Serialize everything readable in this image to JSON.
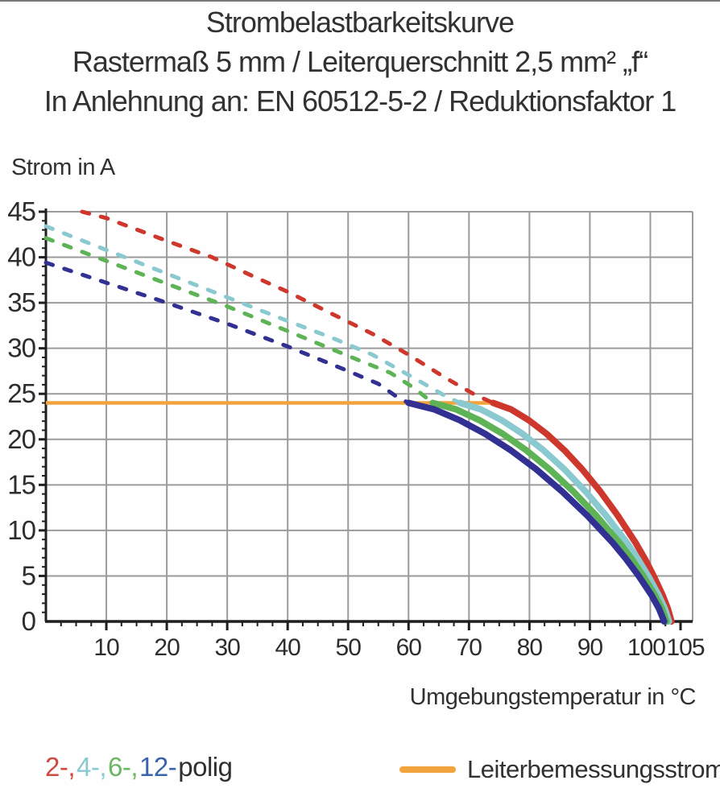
{
  "page": {
    "title_lines": [
      "Strombelastbarkeitskurve",
      "Rastermaß 5 mm / Leiterquerschnitt 2,5 mm² „f“",
      "In Anlehnung an: EN 60512-5-2 / Reduktionsfaktor 1"
    ]
  },
  "chart_data": {
    "type": "line",
    "title": "Strombelastbarkeitskurve",
    "subtitle": "Rastermaß 5 mm / Leiterquerschnitt 2,5 mm² „f“ / In Anlehnung an: EN 60512-5-2 / Reduktionsfaktor 1",
    "grid": true,
    "colors": {
      "grid": "#9b9b9b",
      "axis": "#1f1f1f",
      "text": "#2d2d2d"
    },
    "y_axis": {
      "label": "Strom in A",
      "min": 0,
      "max": 45,
      "tick_labels": [
        0,
        5,
        10,
        15,
        20,
        25,
        30,
        35,
        40,
        45
      ],
      "minor_step": 1
    },
    "x_axis": {
      "label": "Umgebungstemperatur in °C",
      "min": 0,
      "max": 107,
      "tick_labels": [
        10,
        20,
        30,
        40,
        50,
        60,
        70,
        80,
        90,
        100,
        105
      ],
      "minor_step": 2.5,
      "grid_step": 10,
      "grid_max": 100
    },
    "reference_line": {
      "name": "Leiterbemessungsstrom",
      "value": 24,
      "x_start": 0,
      "x_end": 74,
      "color": "#F2A43C"
    },
    "series": [
      {
        "name": "2-polig",
        "color": "#CE372C",
        "dashed_points": [
          [
            6,
            45
          ],
          [
            10,
            44.3
          ],
          [
            20,
            41.8
          ],
          [
            27.5,
            40
          ],
          [
            34,
            38
          ],
          [
            40,
            36.2
          ],
          [
            47,
            33.9
          ],
          [
            54,
            31.6
          ],
          [
            60,
            29.3
          ],
          [
            66,
            26.8
          ],
          [
            71,
            24.9
          ],
          [
            74,
            24
          ]
        ],
        "solid_points": [
          [
            74,
            24
          ],
          [
            76.95,
            23.3
          ],
          [
            79.9,
            22.1
          ],
          [
            82.85,
            20.6
          ],
          [
            85.8,
            18.8
          ],
          [
            88.75,
            16.7
          ],
          [
            91.7,
            14.3
          ],
          [
            94.65,
            11.6
          ],
          [
            97.6,
            8.6
          ],
          [
            99.08,
            6.9
          ],
          [
            100.55,
            5.0
          ],
          [
            102.03,
            2.9
          ],
          [
            102.91,
            1.4
          ],
          [
            103.5,
            0
          ]
        ]
      },
      {
        "name": "4-polig",
        "color": "#8AC9D0",
        "dashed_points": [
          [
            0,
            43.4
          ],
          [
            10,
            40.8
          ],
          [
            20,
            38.2
          ],
          [
            30,
            35.6
          ],
          [
            40,
            33.0
          ],
          [
            47.5,
            31.1
          ],
          [
            54,
            29.3
          ],
          [
            61,
            26.7
          ],
          [
            66,
            24.8
          ],
          [
            68.5,
            24
          ]
        ],
        "solid_points": [
          [
            68.5,
            24
          ],
          [
            71.96,
            23.3
          ],
          [
            75.42,
            22.1
          ],
          [
            78.88,
            20.6
          ],
          [
            82.34,
            18.8
          ],
          [
            85.8,
            16.7
          ],
          [
            89.26,
            14.3
          ],
          [
            92.72,
            11.6
          ],
          [
            96.18,
            8.6
          ],
          [
            97.91,
            6.9
          ],
          [
            99.64,
            5.0
          ],
          [
            101.37,
            2.9
          ],
          [
            102.41,
            1.4
          ],
          [
            103.1,
            0
          ]
        ]
      },
      {
        "name": "6-polig",
        "color": "#5DB355",
        "dashed_points": [
          [
            0,
            42.1
          ],
          [
            10,
            39.6
          ],
          [
            20,
            37.1
          ],
          [
            30,
            34.6
          ],
          [
            40,
            31.9
          ],
          [
            51,
            28.9
          ],
          [
            57,
            27.3
          ],
          [
            61,
            25.6
          ],
          [
            64,
            24
          ]
        ],
        "solid_points": [
          [
            64,
            24
          ],
          [
            67.87,
            23.3
          ],
          [
            71.74,
            22.1
          ],
          [
            75.61,
            20.6
          ],
          [
            79.48,
            18.8
          ],
          [
            83.35,
            16.7
          ],
          [
            87.22,
            14.3
          ],
          [
            91.09,
            11.6
          ],
          [
            94.96,
            8.6
          ],
          [
            96.9,
            6.9
          ],
          [
            98.83,
            5.0
          ],
          [
            100.77,
            2.9
          ],
          [
            101.93,
            1.4
          ],
          [
            102.7,
            0
          ]
        ]
      },
      {
        "name": "12-polig",
        "color": "#323092",
        "dashed_points": [
          [
            0,
            39.4
          ],
          [
            10,
            37.2
          ],
          [
            20,
            35.0
          ],
          [
            30,
            32.7
          ],
          [
            40,
            30.2
          ],
          [
            50,
            27.5
          ],
          [
            55,
            26.1
          ],
          [
            58,
            24.7
          ],
          [
            60,
            24
          ]
        ],
        "solid_points": [
          [
            60,
            24
          ],
          [
            64.23,
            23.3
          ],
          [
            68.46,
            22.1
          ],
          [
            72.69,
            20.6
          ],
          [
            76.92,
            18.8
          ],
          [
            81.15,
            16.7
          ],
          [
            85.38,
            14.3
          ],
          [
            89.61,
            11.6
          ],
          [
            93.84,
            8.6
          ],
          [
            95.96,
            6.9
          ],
          [
            98.07,
            5.0
          ],
          [
            100.19,
            2.9
          ],
          [
            101.45,
            1.4
          ],
          [
            102.3,
            0
          ]
        ]
      }
    ]
  },
  "legend": {
    "items": [
      {
        "text": "2-,",
        "color": "#CE4A41"
      },
      {
        "text": "4-,",
        "color": "#8AC9D0"
      },
      {
        "text": "6-,",
        "color": "#6BB763"
      },
      {
        "text": "12-",
        "color": "#3B63AC"
      },
      {
        "text": "polig",
        "color": "#2f2f2f"
      }
    ],
    "reference_label": "Leiterbemessungsstrom"
  }
}
